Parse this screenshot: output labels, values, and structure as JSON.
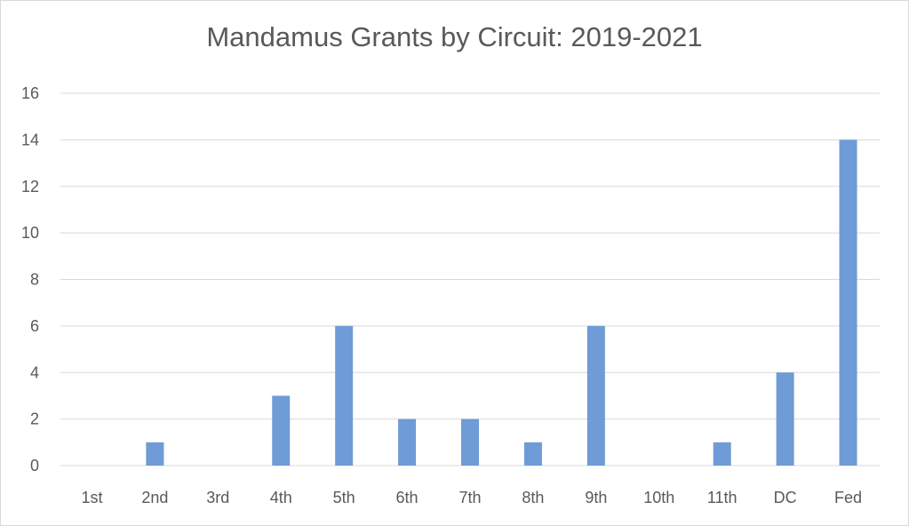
{
  "chart_data": {
    "type": "bar",
    "title": "Mandamus Grants by Circuit: 2019-2021",
    "xlabel": "",
    "ylabel": "",
    "categories": [
      "1st",
      "2nd",
      "3rd",
      "4th",
      "5th",
      "6th",
      "7th",
      "8th",
      "9th",
      "10th",
      "11th",
      "DC",
      "Fed"
    ],
    "values": [
      0,
      1,
      0,
      3,
      6,
      2,
      2,
      1,
      6,
      0,
      1,
      4,
      14
    ],
    "ylim": [
      0,
      16
    ],
    "yticks": [
      0,
      2,
      4,
      6,
      8,
      10,
      12,
      14,
      16
    ],
    "grid": true,
    "legend": "none",
    "bar_color": "#6f9bd6",
    "grid_color": "#d9d9d9"
  }
}
